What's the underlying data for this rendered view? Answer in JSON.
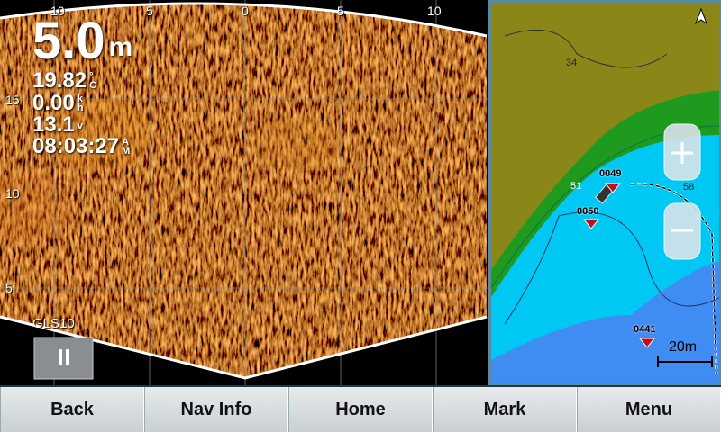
{
  "sonar": {
    "range_labels_top": [
      "10",
      "5",
      "0",
      "5",
      "10"
    ],
    "range_labels_left": [
      "15",
      "10",
      "5"
    ],
    "depth": {
      "value": "5.0",
      "unit": "m"
    },
    "readouts": [
      {
        "value": "19.82",
        "unit": "°C"
      },
      {
        "value": "0.00",
        "unit": "kh"
      },
      {
        "value": "13.1",
        "unit": "v"
      },
      {
        "value": "08:03:27",
        "unit": "AM"
      }
    ],
    "source": "GLS10"
  },
  "map": {
    "contour_labels": [
      "34",
      "51",
      "58"
    ],
    "waypoints": [
      "0049",
      "0050",
      "0441"
    ],
    "scale": "20m"
  },
  "menu": [
    "Back",
    "Nav Info",
    "Home",
    "Mark",
    "Menu"
  ]
}
